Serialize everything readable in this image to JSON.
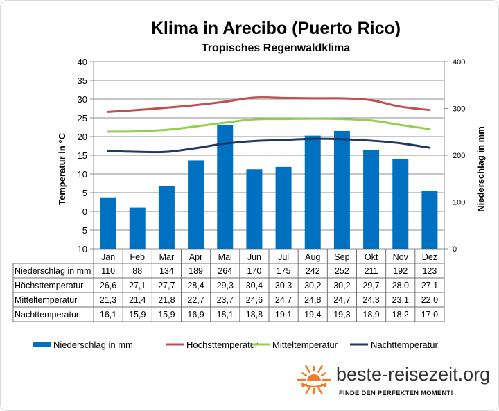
{
  "chart_data": {
    "type": "bar+line",
    "title": "Klima in Arecibo (Puerto Rico)",
    "subtitle": "Tropisches Regenwaldklima",
    "categories": [
      "Jan",
      "Feb",
      "Mar",
      "Apr",
      "Mai",
      "Jun",
      "Jul",
      "Aug",
      "Sep",
      "Okt",
      "Nov",
      "Dez"
    ],
    "y_left": {
      "label": "Temperatur in °C",
      "min": -10,
      "max": 40,
      "step": 5
    },
    "y_right": {
      "label": "Niederschlag in mm",
      "min": 0,
      "max": 400,
      "step": 100
    },
    "series": [
      {
        "name": "Niederschlag in mm",
        "kind": "bar",
        "axis": "right",
        "color": "#0070c0",
        "values": [
          110,
          88,
          134,
          189,
          264,
          170,
          175,
          242,
          252,
          211,
          192,
          123
        ],
        "labels": [
          "110",
          "88",
          "134",
          "189",
          "264",
          "170",
          "175",
          "242",
          "252",
          "211",
          "192",
          "123"
        ]
      },
      {
        "name": "Höchsttemperatur",
        "kind": "line",
        "axis": "left",
        "color": "#c0504d",
        "values": [
          26.6,
          27.1,
          27.7,
          28.4,
          29.3,
          30.4,
          30.3,
          30.2,
          30.2,
          29.7,
          28.0,
          27.1
        ],
        "labels": [
          "26,6",
          "27,1",
          "27,7",
          "28,4",
          "29,3",
          "30,4",
          "30,3",
          "30,2",
          "30,2",
          "29,7",
          "28,0",
          "27,1"
        ]
      },
      {
        "name": "Mitteltemperatur",
        "kind": "line",
        "axis": "left",
        "color": "#92d050",
        "values": [
          21.3,
          21.4,
          21.8,
          22.7,
          23.7,
          24.6,
          24.7,
          24.8,
          24.7,
          24.3,
          23.1,
          22.0
        ],
        "labels": [
          "21,3",
          "21,4",
          "21,8",
          "22,7",
          "23,7",
          "24,6",
          "24,7",
          "24,8",
          "24,7",
          "24,3",
          "23,1",
          "22,0"
        ]
      },
      {
        "name": "Nachttemperatur",
        "kind": "line",
        "axis": "left",
        "color": "#1f3864",
        "values": [
          16.1,
          15.9,
          15.9,
          16.9,
          18.1,
          18.8,
          19.1,
          19.4,
          19.3,
          18.9,
          18.2,
          17.0
        ],
        "labels": [
          "16,1",
          "15,9",
          "15,9",
          "16,9",
          "18,1",
          "18,8",
          "19,1",
          "19,4",
          "19,3",
          "18,9",
          "18,2",
          "17,0"
        ]
      }
    ],
    "grid": true,
    "legend": "bottom",
    "table_below": true
  },
  "logo": {
    "text": "beste-reisezeit.org",
    "tagline": "FINDE DEN PERFEKTEN MOMENT!",
    "icon": "sun-icon",
    "accent": "#f07b2a"
  }
}
